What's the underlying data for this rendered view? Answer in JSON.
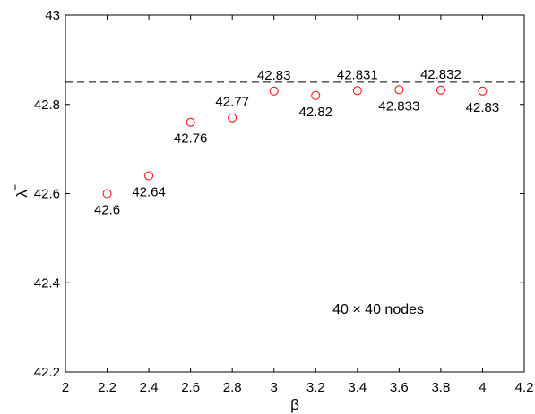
{
  "chart_data": {
    "type": "scatter",
    "xlabel": "β",
    "ylabel": "λ",
    "xlim": [
      2,
      4.2
    ],
    "ylim": [
      42.2,
      43
    ],
    "x_ticks": [
      2,
      2.2,
      2.4,
      2.6,
      2.8,
      3,
      3.2,
      3.4,
      3.6,
      3.8,
      4,
      4.2
    ],
    "x_tick_labels": [
      "2",
      "2.2",
      "2.4",
      "2.6",
      "2.8",
      "3",
      "3.2",
      "3.4",
      "3.6",
      "3.8",
      "4",
      "4.2"
    ],
    "y_ticks": [
      42.2,
      42.4,
      42.6,
      42.8,
      43
    ],
    "y_tick_labels": [
      "42.2",
      "42.4",
      "42.6",
      "42.8",
      "43"
    ],
    "grid": false,
    "reference_line": {
      "y": 42.85,
      "style": "dashed"
    },
    "annotation": "40 × 40 nodes",
    "series": [
      {
        "marker": "open-circle",
        "color": "#ff0000",
        "points": [
          {
            "x": 2.2,
            "y": 42.6,
            "label": "42.6",
            "label_pos": "below"
          },
          {
            "x": 2.4,
            "y": 42.64,
            "label": "42.64",
            "label_pos": "below"
          },
          {
            "x": 2.6,
            "y": 42.76,
            "label": "42.76",
            "label_pos": "below"
          },
          {
            "x": 2.8,
            "y": 42.77,
            "label": "42.77",
            "label_pos": "above"
          },
          {
            "x": 3.0,
            "y": 42.83,
            "label": "42.83",
            "label_pos": "above"
          },
          {
            "x": 3.2,
            "y": 42.82,
            "label": "42.82",
            "label_pos": "below"
          },
          {
            "x": 3.4,
            "y": 42.831,
            "label": "42.831",
            "label_pos": "above"
          },
          {
            "x": 3.6,
            "y": 42.833,
            "label": "42.833",
            "label_pos": "below"
          },
          {
            "x": 3.8,
            "y": 42.832,
            "label": "42.832",
            "label_pos": "above"
          },
          {
            "x": 4.0,
            "y": 42.83,
            "label": "42.83",
            "label_pos": "below"
          }
        ]
      }
    ]
  }
}
